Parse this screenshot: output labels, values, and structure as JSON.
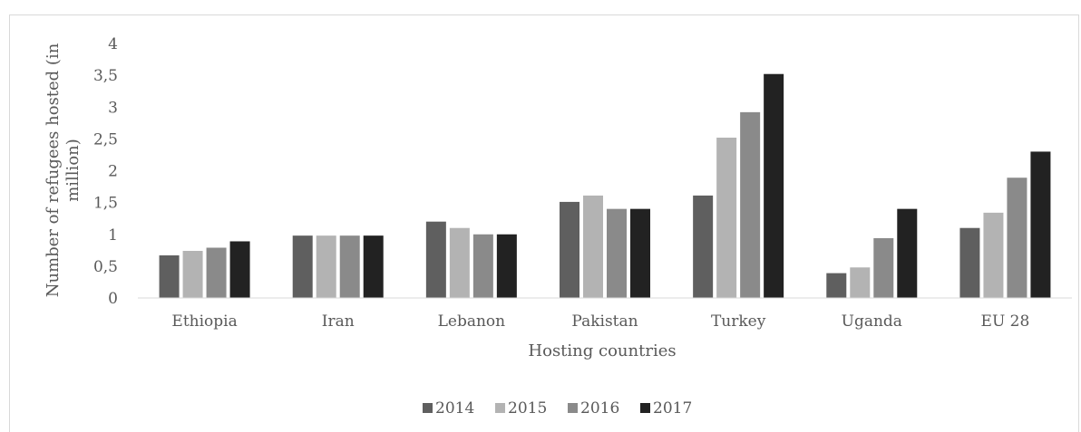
{
  "chart_data": {
    "type": "bar",
    "categories": [
      "Ethiopia",
      "Iran",
      "Lebanon",
      "Pakistan",
      "Turkey",
      "Uganda",
      "EU 28"
    ],
    "series": [
      {
        "name": "2014",
        "color": "#5f5f5f",
        "values": [
          0.67,
          0.98,
          1.2,
          1.51,
          1.61,
          0.39,
          1.1
        ]
      },
      {
        "name": "2015",
        "color": "#b3b3b3",
        "values": [
          0.74,
          0.98,
          1.1,
          1.61,
          2.52,
          0.48,
          1.34
        ]
      },
      {
        "name": "2016",
        "color": "#8a8a8a",
        "values": [
          0.79,
          0.98,
          1.0,
          1.4,
          2.92,
          0.94,
          1.89
        ]
      },
      {
        "name": "2017",
        "color": "#222222",
        "values": [
          0.89,
          0.98,
          1.0,
          1.4,
          3.52,
          1.4,
          2.3
        ]
      }
    ],
    "ylim": [
      0,
      4
    ],
    "yticks": [
      0,
      0.5,
      1,
      1.5,
      2,
      2.5,
      3,
      3.5,
      4
    ],
    "ytick_labels": [
      "0",
      "0,5",
      "1",
      "1,5",
      "2",
      "2,5",
      "3",
      "3,5",
      "4"
    ],
    "xlabel": "Hosting countries",
    "ylabel_lines": [
      "Number of refugees hosted (in",
      "million)"
    ],
    "grid": false,
    "legend_position": "bottom"
  }
}
